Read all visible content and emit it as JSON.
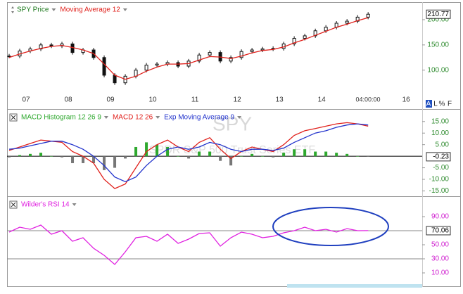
{
  "chart_data": [
    {
      "type": "candlestick",
      "x": [
        2006.6,
        2006.85,
        2007.1,
        2007.35,
        2007.6,
        2007.85,
        2008.1,
        2008.35,
        2008.6,
        2008.85,
        2009.1,
        2009.35,
        2009.6,
        2009.85,
        2010.1,
        2010.35,
        2010.6,
        2010.85,
        2011.1,
        2011.35,
        2011.6,
        2011.85,
        2012.1,
        2012.35,
        2012.6,
        2012.85,
        2013.1,
        2013.35,
        2013.6,
        2013.85,
        2014.1,
        2014.35,
        2014.6,
        2014.85,
        2015.1
      ],
      "series": [
        {
          "name": "SPY Price",
          "kind": "candle",
          "color": "#111111",
          "label_color": "#1e7a1e",
          "values": [
            128,
            138,
            142,
            150,
            148,
            152,
            135,
            140,
            125,
            90,
            75,
            88,
            100,
            110,
            112,
            115,
            108,
            118,
            130,
            135,
            118,
            125,
            137,
            140,
            142,
            143,
            152,
            163,
            168,
            178,
            185,
            193,
            197,
            205,
            210.77
          ]
        },
        {
          "name": "Moving Average 12",
          "kind": "line",
          "color": "#e0201b",
          "label_color": "#e0201b",
          "values": [
            125,
            132,
            138,
            143,
            147,
            149,
            145,
            140,
            133,
            112,
            90,
            82,
            88,
            98,
            106,
            112,
            112,
            113,
            120,
            127,
            126,
            123,
            128,
            134,
            139,
            141,
            146,
            154,
            161,
            169,
            177,
            185,
            191,
            198,
            204
          ]
        }
      ],
      "xlim": [
        2006.55,
        2016.38
      ],
      "xticks": [
        {
          "value": 2007,
          "label": "07"
        },
        {
          "value": 2008,
          "label": "08"
        },
        {
          "value": 2009,
          "label": "09"
        },
        {
          "value": 2010,
          "label": "10"
        },
        {
          "value": 2011,
          "label": "11"
        },
        {
          "value": 2012,
          "label": "12"
        },
        {
          "value": 2013,
          "label": "13"
        },
        {
          "value": 2014,
          "label": "14"
        },
        {
          "value": 2016,
          "label": "16"
        }
      ],
      "time_label": "04:00:00",
      "ylim": [
        30,
        232
      ],
      "yticks": [
        {
          "value": 100,
          "label": "100.00"
        },
        {
          "value": 150,
          "label": "150.00"
        },
        {
          "value": 200,
          "label": "200.00"
        }
      ]
    },
    {
      "type": "bar",
      "x": [
        2006.6,
        2006.85,
        2007.1,
        2007.35,
        2007.6,
        2007.85,
        2008.1,
        2008.35,
        2008.6,
        2008.85,
        2009.1,
        2009.35,
        2009.6,
        2009.85,
        2010.1,
        2010.35,
        2010.6,
        2010.85,
        2011.1,
        2011.35,
        2011.6,
        2011.85,
        2012.1,
        2012.35,
        2012.6,
        2012.85,
        2013.1,
        2013.35,
        2013.6,
        2013.85,
        2014.1,
        2014.35,
        2014.6,
        2014.85,
        2015.1
      ],
      "series": [
        {
          "name": "MACD Histogram 12 26 9",
          "kind": "bar",
          "color": "#2ea82e",
          "negative_color": "#777777",
          "label_color": "#2ea82e",
          "values": [
            -0.5,
            0.5,
            1,
            1.5,
            0,
            -0.5,
            -3,
            -3,
            -3,
            -6,
            -5,
            -1,
            4,
            6,
            5,
            4,
            0,
            -1,
            2,
            2,
            -2,
            -4,
            0,
            1,
            0,
            -0.5,
            1.5,
            3,
            3,
            2,
            2,
            1.5,
            1,
            0,
            -0.23
          ]
        },
        {
          "name": "MACD 12 26",
          "kind": "line",
          "color": "#e0201b",
          "label_color": "#e0201b",
          "values": [
            2.5,
            4,
            5.5,
            7,
            6.5,
            6,
            2,
            0,
            -3,
            -10,
            -14,
            -12,
            -5,
            2,
            5,
            7,
            4,
            2,
            6,
            8,
            3,
            -1,
            2,
            4,
            3,
            2,
            5,
            9,
            11,
            12,
            13,
            14,
            14.5,
            14,
            13
          ]
        },
        {
          "name": "Exp Moving Average 9",
          "kind": "line",
          "color": "#2233cc",
          "label_color": "#2233cc",
          "values": [
            3,
            3.5,
            4.5,
            5.5,
            6.5,
            6.5,
            5,
            3,
            0,
            -4,
            -9,
            -11,
            -9,
            -4,
            0,
            3,
            4,
            3,
            4,
            6,
            5,
            3,
            2,
            3,
            3,
            2.5,
            3.5,
            6,
            8,
            10,
            11,
            12.5,
            13.5,
            14,
            13.5
          ]
        }
      ],
      "xlim": [
        2006.55,
        2016.38
      ],
      "ylim": [
        -17,
        19.5
      ],
      "yticks": [
        {
          "value": -15,
          "label": "-15.00"
        },
        {
          "value": -10,
          "label": "-10.00"
        },
        {
          "value": -5,
          "label": "-5.00"
        },
        {
          "value": 5,
          "label": "5.00"
        },
        {
          "value": 10,
          "label": "10.00"
        },
        {
          "value": 15,
          "label": "15.00"
        }
      ]
    },
    {
      "type": "line",
      "x": [
        2006.6,
        2006.85,
        2007.1,
        2007.35,
        2007.6,
        2007.85,
        2008.1,
        2008.35,
        2008.6,
        2008.85,
        2009.1,
        2009.35,
        2009.6,
        2009.85,
        2010.1,
        2010.35,
        2010.6,
        2010.85,
        2011.1,
        2011.35,
        2011.6,
        2011.85,
        2012.1,
        2012.35,
        2012.6,
        2012.85,
        2013.1,
        2013.35,
        2013.6,
        2013.85,
        2014.1,
        2014.35,
        2014.6,
        2014.85,
        2015.1
      ],
      "series": [
        {
          "name": "Wilder's RSI 14",
          "kind": "line",
          "color": "#e020e0",
          "label_color": "#e020e0",
          "values": [
            68,
            75,
            72,
            78,
            65,
            70,
            55,
            60,
            45,
            35,
            22,
            40,
            60,
            62,
            55,
            65,
            52,
            58,
            66,
            67,
            48,
            60,
            68,
            65,
            60,
            62,
            67,
            70,
            75,
            70,
            72,
            68,
            73,
            70,
            70.06
          ]
        }
      ],
      "hlines": [
        70,
        30
      ],
      "xlim": [
        2006.55,
        2016.38
      ],
      "ylim": [
        -7,
        116
      ],
      "yticks": [
        {
          "value": 10,
          "label": "10.00"
        },
        {
          "value": 30,
          "label": "30.00"
        },
        {
          "value": 50,
          "label": "50.00"
        },
        {
          "value": 90,
          "label": "90.00"
        }
      ]
    }
  ],
  "watermark": {
    "symbol": "SPY",
    "name": "SPDR S&P 500 Trust Series ETF"
  },
  "toolbar": [
    "A",
    "L",
    "%",
    "F"
  ]
}
